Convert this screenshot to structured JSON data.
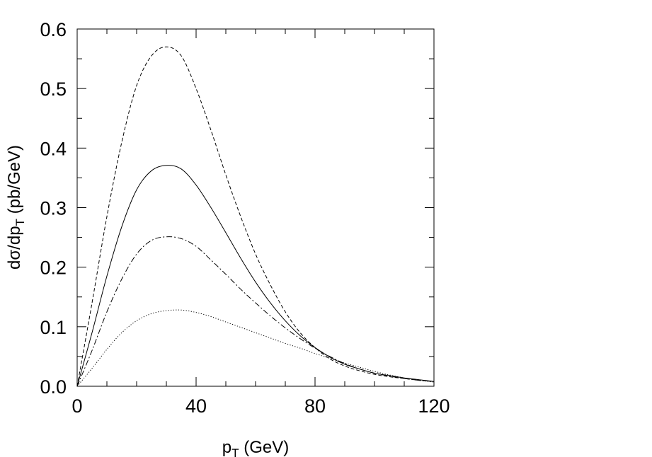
{
  "chart_data": {
    "type": "line",
    "title": "",
    "xlabel": {
      "main": "p",
      "sub": "T",
      "rest": " (GeV)"
    },
    "ylabel": {
      "pre": "dσ/dp",
      "sub": "T",
      "post": " (pb/GeV)"
    },
    "xlim": [
      0,
      120
    ],
    "ylim": [
      0.0,
      0.6
    ],
    "xticks": [
      0,
      40,
      80,
      120
    ],
    "xtick_labels": [
      "0",
      "40",
      "80",
      "120"
    ],
    "yticks": [
      0.0,
      0.1,
      0.2,
      0.3,
      0.4,
      0.5,
      0.6
    ],
    "ytick_labels": [
      "0.0",
      "0.1",
      "0.2",
      "0.3",
      "0.4",
      "0.5",
      "0.6"
    ],
    "x_minor_step": 10,
    "y_minor_step": 0.05,
    "grid": false,
    "legend": "none",
    "series": [
      {
        "style": "dashed",
        "x": [
          0,
          5,
          10,
          15,
          20,
          25,
          30,
          35,
          40,
          45,
          50,
          55,
          60,
          65,
          70,
          75,
          80,
          85,
          90,
          95,
          100,
          105,
          110,
          115,
          120
        ],
        "y": [
          0.0,
          0.14,
          0.285,
          0.41,
          0.505,
          0.555,
          0.57,
          0.555,
          0.5,
          0.43,
          0.355,
          0.285,
          0.222,
          0.17,
          0.125,
          0.09,
          0.065,
          0.046,
          0.034,
          0.026,
          0.02,
          0.016,
          0.013,
          0.01,
          0.008
        ]
      },
      {
        "style": "solid",
        "x": [
          0,
          5,
          10,
          15,
          20,
          25,
          30,
          35,
          40,
          45,
          50,
          55,
          60,
          65,
          70,
          75,
          80,
          85,
          90,
          95,
          100,
          105,
          110,
          115,
          120
        ],
        "y": [
          0.0,
          0.09,
          0.185,
          0.268,
          0.33,
          0.362,
          0.371,
          0.365,
          0.338,
          0.3,
          0.258,
          0.215,
          0.175,
          0.14,
          0.11,
          0.085,
          0.065,
          0.049,
          0.037,
          0.029,
          0.022,
          0.018,
          0.014,
          0.011,
          0.008
        ]
      },
      {
        "style": "dashdot",
        "x": [
          0,
          5,
          10,
          15,
          20,
          25,
          30,
          35,
          40,
          45,
          50,
          55,
          60,
          65,
          70,
          75,
          80,
          85,
          90,
          95,
          100,
          105,
          110,
          115,
          120
        ],
        "y": [
          0.0,
          0.06,
          0.125,
          0.18,
          0.222,
          0.245,
          0.251,
          0.248,
          0.235,
          0.212,
          0.188,
          0.163,
          0.14,
          0.118,
          0.098,
          0.08,
          0.064,
          0.05,
          0.038,
          0.029,
          0.022,
          0.017,
          0.013,
          0.01,
          0.008
        ]
      },
      {
        "style": "dotted",
        "x": [
          0,
          5,
          10,
          15,
          20,
          25,
          30,
          35,
          40,
          45,
          50,
          55,
          60,
          65,
          70,
          75,
          80,
          85,
          90,
          95,
          100,
          105,
          110,
          115,
          120
        ],
        "y": [
          0.0,
          0.03,
          0.062,
          0.09,
          0.11,
          0.122,
          0.127,
          0.128,
          0.124,
          0.117,
          0.108,
          0.099,
          0.09,
          0.081,
          0.072,
          0.064,
          0.055,
          0.047,
          0.039,
          0.032,
          0.025,
          0.019,
          0.014,
          0.01,
          0.007
        ]
      }
    ]
  }
}
